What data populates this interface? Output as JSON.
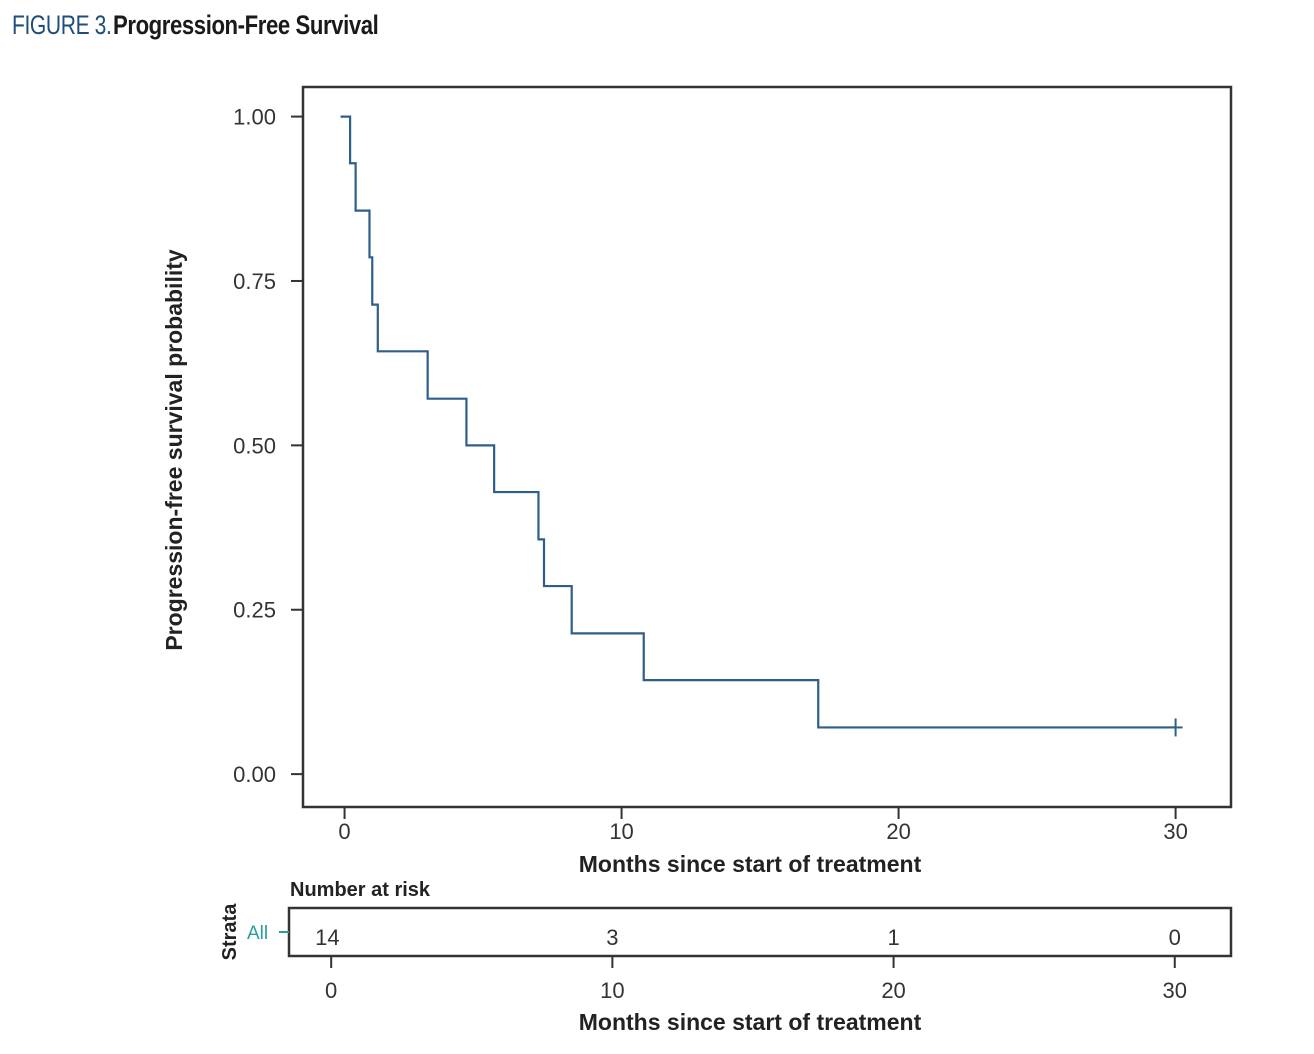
{
  "figure": {
    "number": "FIGURE 3.",
    "title": "Progression-Free Survival"
  },
  "colors": {
    "curve": "#2e5f8a",
    "figure_number": "#1f4e79",
    "strata": "#2a9d9a"
  },
  "chart_data": [
    {
      "type": "line",
      "subtype": "kaplan-meier step",
      "title": "",
      "xlabel": "Months since start of treatment",
      "ylabel": "Progression-free survival probability",
      "xlim": [
        -1.5,
        32
      ],
      "ylim": [
        -0.05,
        1.045
      ],
      "x_ticks": [
        0,
        10,
        20,
        30
      ],
      "x_tick_labels": [
        "0",
        "10",
        "20",
        "30"
      ],
      "y_ticks": [
        0,
        0.25,
        0.5,
        0.75,
        1.0
      ],
      "y_tick_labels": [
        "0.00",
        "0.25",
        "0.50",
        "0.75",
        "1.00"
      ],
      "grid": false,
      "series": [
        {
          "x": [
            0,
            0.2,
            0.4,
            0.9,
            1.0,
            1.2,
            3.0,
            4.4,
            5.4,
            7.0,
            7.2,
            8.2,
            10.8,
            17.1,
            30
          ],
          "y": [
            1.0,
            0.929,
            0.857,
            0.786,
            0.714,
            0.643,
            0.571,
            0.5,
            0.429,
            0.357,
            0.286,
            0.214,
            0.143,
            0.071,
            0.071
          ],
          "censored": [
            [
              30,
              0.071
            ]
          ]
        }
      ]
    },
    {
      "type": "table",
      "title": "Number at risk",
      "strata_label": "Strata",
      "strata": [
        "All"
      ],
      "xlabel": "Months since start of treatment",
      "x_ticks": [
        0,
        10,
        20,
        30
      ],
      "x_tick_labels": [
        "0",
        "10",
        "20",
        "30"
      ],
      "xlim": [
        -1.5,
        32
      ],
      "rows": [
        {
          "name": "All",
          "times": [
            0,
            10,
            20,
            30
          ],
          "counts": [
            "14",
            "3",
            "1",
            "0"
          ]
        }
      ]
    }
  ]
}
